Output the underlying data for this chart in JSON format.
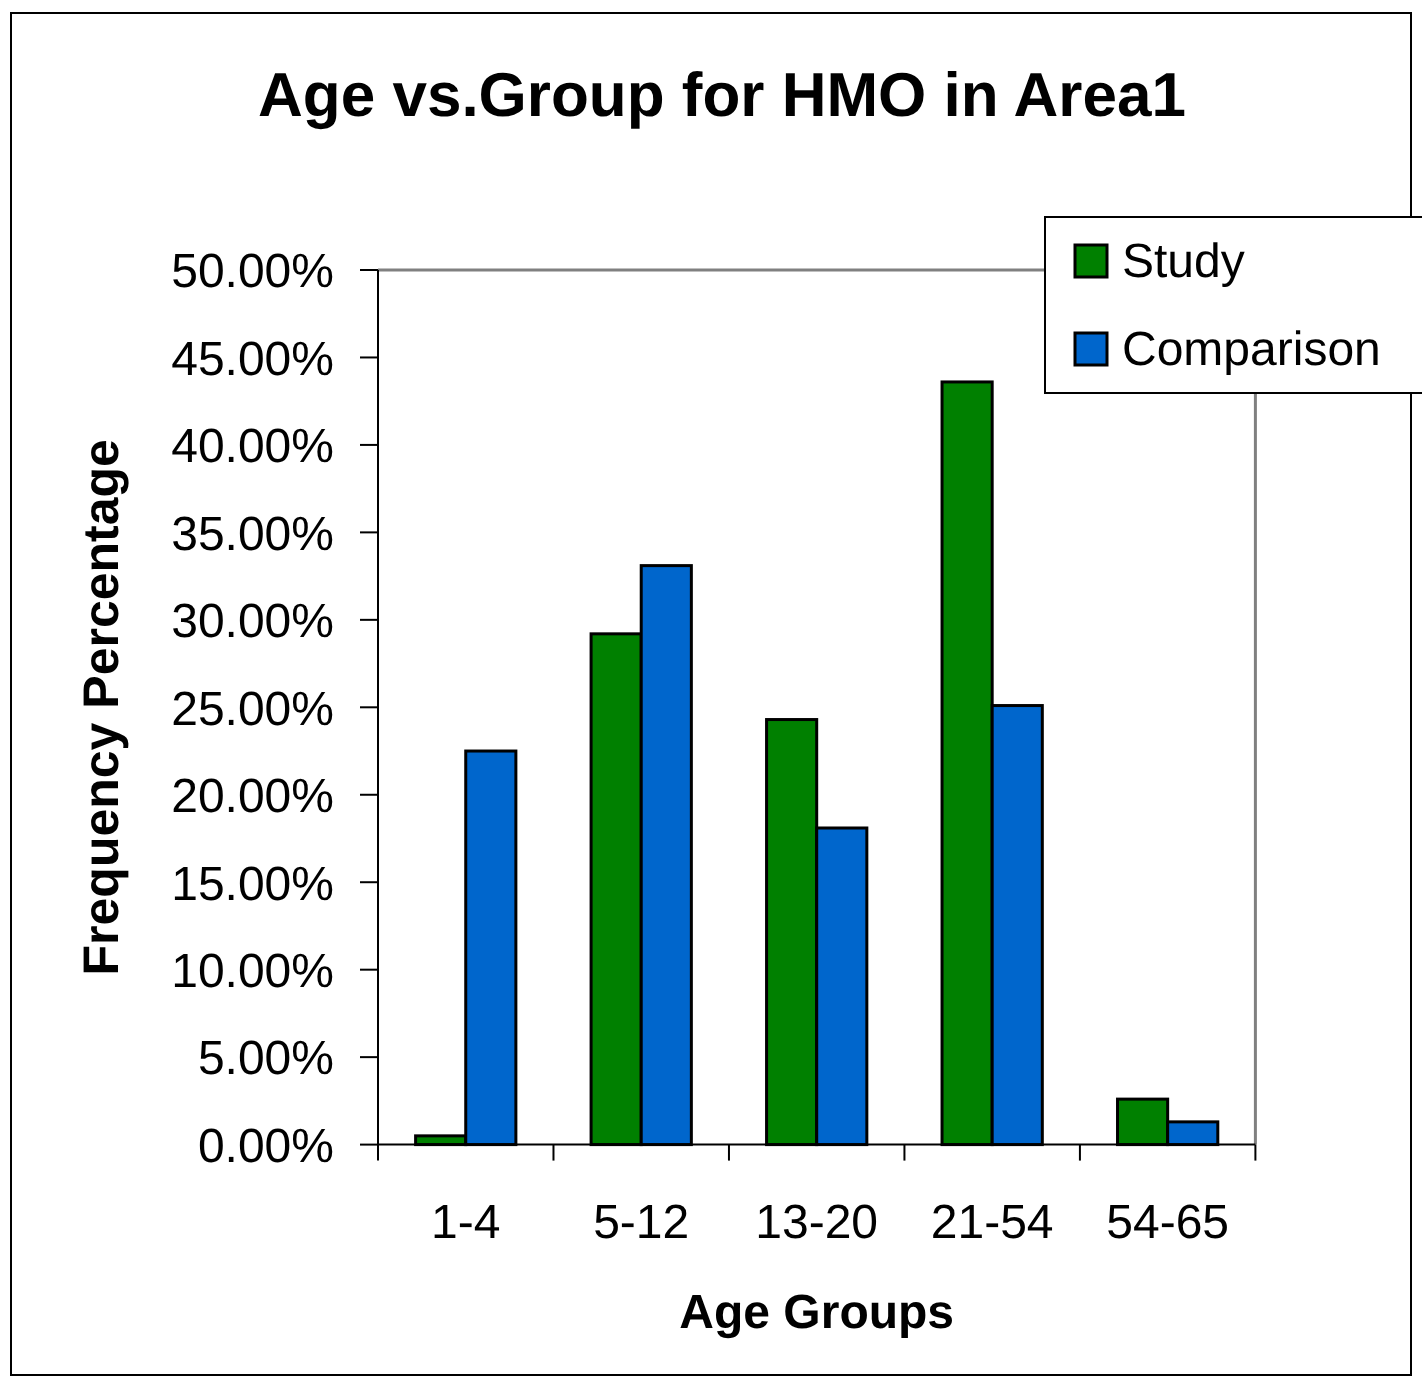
{
  "chart_data": {
    "type": "bar",
    "title": "Age vs.Group for HMO in Area1",
    "xlabel": "Age Groups",
    "ylabel": "Frequency Percentage",
    "categories": [
      "1-4",
      "5-12",
      "13-20",
      "21-54",
      "54-65"
    ],
    "series": [
      {
        "name": "Study",
        "color": "#008000",
        "values": [
          0.5,
          29.2,
          24.3,
          43.6,
          2.6
        ]
      },
      {
        "name": "Comparison",
        "color": "#0066cc",
        "values": [
          22.5,
          33.1,
          18.1,
          25.1,
          1.3
        ]
      }
    ],
    "ylim": [
      0,
      50
    ],
    "yticks": [
      {
        "value": 0,
        "label": "0.00%"
      },
      {
        "value": 5,
        "label": "5.00%"
      },
      {
        "value": 10,
        "label": "10.00%"
      },
      {
        "value": 15,
        "label": "15.00%"
      },
      {
        "value": 20,
        "label": "20.00%"
      },
      {
        "value": 25,
        "label": "25.00%"
      },
      {
        "value": 30,
        "label": "30.00%"
      },
      {
        "value": 35,
        "label": "35.00%"
      },
      {
        "value": 40,
        "label": "40.00%"
      },
      {
        "value": 45,
        "label": "45.00%"
      },
      {
        "value": 50,
        "label": "50.00%"
      }
    ],
    "legend": "top right"
  }
}
